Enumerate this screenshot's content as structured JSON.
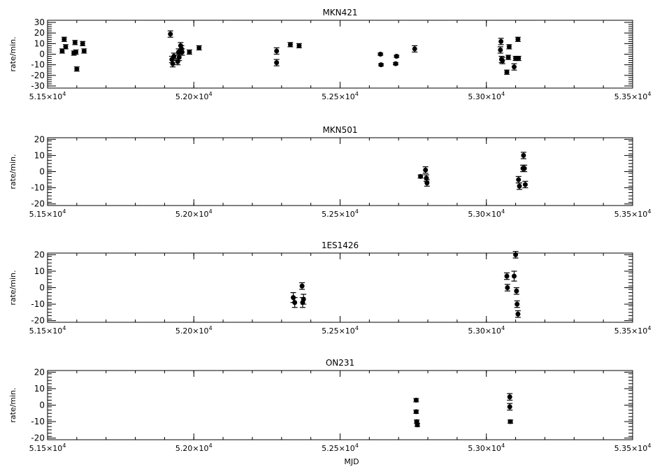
{
  "figure": {
    "xlabel": "MJD"
  },
  "x_tick_labels": [
    {
      "mant": "5.15×10",
      "exp": "4"
    },
    {
      "mant": "5.20×10",
      "exp": "4"
    },
    {
      "mant": "5.25×10",
      "exp": "4"
    },
    {
      "mant": "5.30×10",
      "exp": "4"
    },
    {
      "mant": "5.35×10",
      "exp": "4"
    }
  ],
  "chart_data": [
    {
      "type": "scatter",
      "title": "MKN421",
      "xlabel": "",
      "ylabel": "rate/min.",
      "xlim": [
        51500,
        53500
      ],
      "ylim": [
        -32,
        32
      ],
      "yticks": [
        -30,
        -20,
        -10,
        0,
        10,
        20,
        30
      ],
      "points": [
        {
          "x": 51550,
          "y": 3,
          "err": 2
        },
        {
          "x": 51557,
          "y": 14,
          "err": 2
        },
        {
          "x": 51562,
          "y": 7,
          "err": 2
        },
        {
          "x": 51590,
          "y": 1,
          "err": 2
        },
        {
          "x": 51594,
          "y": 11,
          "err": 2
        },
        {
          "x": 51597,
          "y": 2,
          "err": 2
        },
        {
          "x": 51600,
          "y": -14,
          "err": 2
        },
        {
          "x": 51620,
          "y": 10,
          "err": 2
        },
        {
          "x": 51625,
          "y": 3,
          "err": 2
        },
        {
          "x": 51920,
          "y": 19,
          "err": 3
        },
        {
          "x": 51925,
          "y": -5,
          "err": 3
        },
        {
          "x": 51928,
          "y": -9,
          "err": 3
        },
        {
          "x": 51932,
          "y": -2,
          "err": 3
        },
        {
          "x": 51945,
          "y": -7,
          "err": 3
        },
        {
          "x": 51948,
          "y": 2,
          "err": 3
        },
        {
          "x": 51950,
          "y": -3,
          "err": 3
        },
        {
          "x": 51955,
          "y": 8,
          "err": 3
        },
        {
          "x": 51958,
          "y": 5,
          "err": 3
        },
        {
          "x": 51960,
          "y": 2,
          "err": 3
        },
        {
          "x": 51985,
          "y": 2,
          "err": 2
        },
        {
          "x": 52018,
          "y": 6,
          "err": 2
        },
        {
          "x": 52283,
          "y": 3,
          "err": 3
        },
        {
          "x": 52283,
          "y": -8,
          "err": 3
        },
        {
          "x": 52330,
          "y": 9,
          "err": 2
        },
        {
          "x": 52360,
          "y": 8,
          "err": 2
        },
        {
          "x": 52638,
          "y": 0,
          "err": 1
        },
        {
          "x": 52640,
          "y": -10,
          "err": 1
        },
        {
          "x": 52690,
          "y": -9,
          "err": 1
        },
        {
          "x": 52693,
          "y": -2,
          "err": 1
        },
        {
          "x": 52755,
          "y": 5,
          "err": 3
        },
        {
          "x": 53050,
          "y": 12,
          "err": 3
        },
        {
          "x": 53048,
          "y": 4,
          "err": 3
        },
        {
          "x": 53052,
          "y": -5,
          "err": 3
        },
        {
          "x": 53055,
          "y": -6,
          "err": 3
        },
        {
          "x": 53070,
          "y": -17,
          "err": 2
        },
        {
          "x": 53075,
          "y": -3,
          "err": 2
        },
        {
          "x": 53078,
          "y": 7,
          "err": 2
        },
        {
          "x": 53095,
          "y": -12,
          "err": 3
        },
        {
          "x": 53100,
          "y": -4,
          "err": 2
        },
        {
          "x": 53108,
          "y": 14,
          "err": 2
        },
        {
          "x": 53110,
          "y": -4,
          "err": 2
        }
      ]
    },
    {
      "type": "scatter",
      "title": "MKN501",
      "xlabel": "",
      "ylabel": "rate/min.",
      "xlim": [
        51500,
        53500
      ],
      "ylim": [
        -21,
        21
      ],
      "yticks": [
        -20,
        -10,
        0,
        10,
        20
      ],
      "points": [
        {
          "x": 52775,
          "y": -3,
          "err": 1
        },
        {
          "x": 52792,
          "y": 1,
          "err": 2
        },
        {
          "x": 52795,
          "y": -4,
          "err": 2
        },
        {
          "x": 52797,
          "y": -7,
          "err": 2
        },
        {
          "x": 53110,
          "y": -5,
          "err": 2
        },
        {
          "x": 53113,
          "y": -9,
          "err": 2
        },
        {
          "x": 53125,
          "y": 2,
          "err": 2
        },
        {
          "x": 53127,
          "y": 10,
          "err": 2
        },
        {
          "x": 53130,
          "y": 2,
          "err": 2
        },
        {
          "x": 53133,
          "y": -8,
          "err": 2
        }
      ]
    },
    {
      "type": "scatter",
      "title": "1ES1426",
      "xlabel": "",
      "ylabel": "rate/min.",
      "xlim": [
        51500,
        53500
      ],
      "ylim": [
        -21,
        21
      ],
      "yticks": [
        -20,
        -10,
        0,
        10,
        20
      ],
      "points": [
        {
          "x": 52340,
          "y": -6,
          "err": 3
        },
        {
          "x": 52345,
          "y": -9,
          "err": 3
        },
        {
          "x": 52370,
          "y": 1,
          "err": 2
        },
        {
          "x": 52372,
          "y": -9,
          "err": 3
        },
        {
          "x": 52375,
          "y": -7,
          "err": 3
        },
        {
          "x": 53070,
          "y": 7,
          "err": 2
        },
        {
          "x": 53072,
          "y": 0,
          "err": 2
        },
        {
          "x": 53095,
          "y": 7,
          "err": 3
        },
        {
          "x": 53100,
          "y": 20,
          "err": 2
        },
        {
          "x": 53103,
          "y": -2,
          "err": 2
        },
        {
          "x": 53105,
          "y": -10,
          "err": 2
        },
        {
          "x": 53108,
          "y": -16,
          "err": 2
        }
      ]
    },
    {
      "type": "scatter",
      "title": "ON231",
      "xlabel": "MJD",
      "ylabel": "rate/min.",
      "xlim": [
        51500,
        53500
      ],
      "ylim": [
        -21,
        21
      ],
      "yticks": [
        -20,
        -10,
        0,
        10,
        20
      ],
      "points": [
        {
          "x": 52760,
          "y": 3,
          "err": 1
        },
        {
          "x": 52760,
          "y": -4,
          "err": 1
        },
        {
          "x": 52762,
          "y": -10,
          "err": 1
        },
        {
          "x": 52764,
          "y": -12,
          "err": 1
        },
        {
          "x": 53080,
          "y": 5,
          "err": 2
        },
        {
          "x": 53080,
          "y": -1,
          "err": 2
        },
        {
          "x": 53082,
          "y": -10,
          "err": 1
        }
      ]
    }
  ]
}
